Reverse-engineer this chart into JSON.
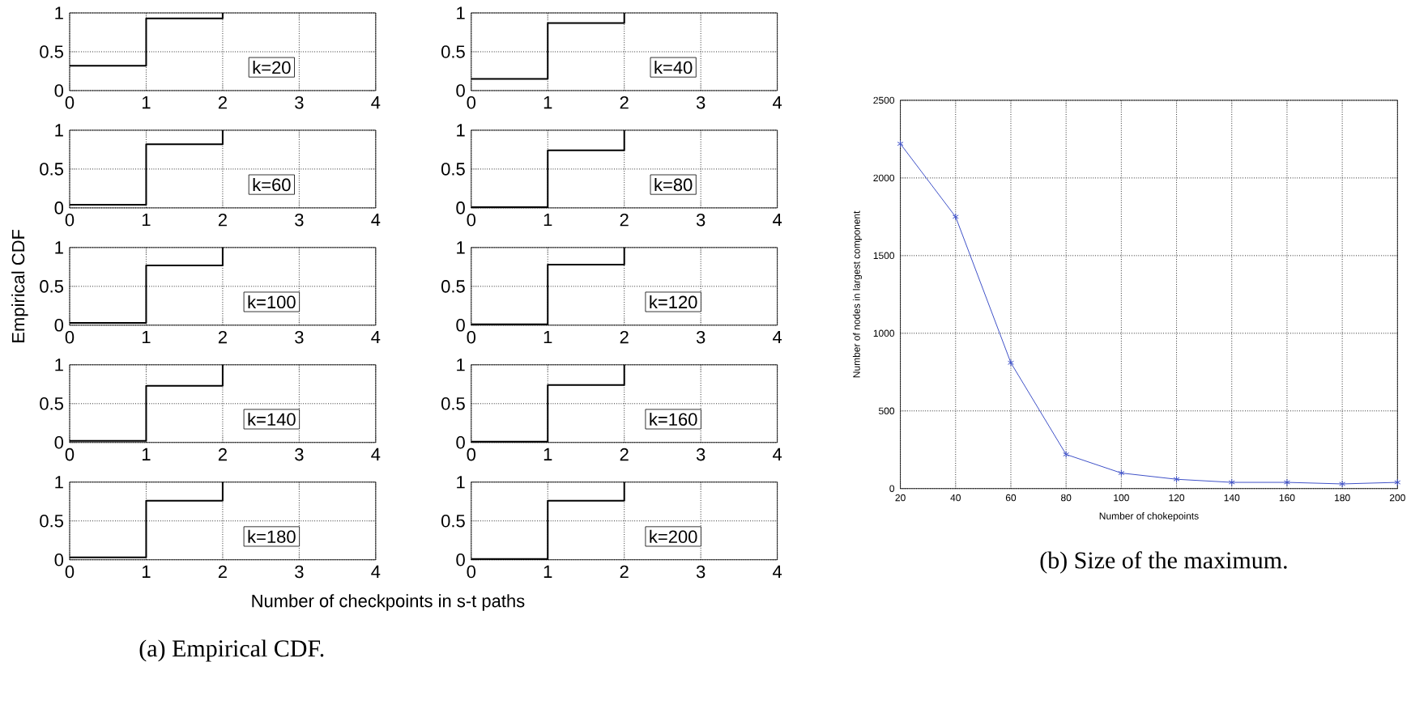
{
  "chart_data": [
    {
      "type": "step",
      "x": [
        0,
        1,
        2
      ],
      "values": [
        0.32,
        0.93,
        1
      ],
      "color": "#000000",
      "xlim": [
        0,
        4
      ],
      "ylim": [
        0,
        1
      ],
      "xticks": [
        0,
        1,
        2,
        3,
        4
      ],
      "yticks": [
        0,
        0.5,
        1
      ],
      "grid": true,
      "annotations": [
        "k=20"
      ]
    },
    {
      "type": "step",
      "x": [
        0,
        1,
        2
      ],
      "values": [
        0.15,
        0.87,
        1
      ],
      "color": "#000000",
      "xlim": [
        0,
        4
      ],
      "ylim": [
        0,
        1
      ],
      "xticks": [
        0,
        1,
        2,
        3,
        4
      ],
      "yticks": [
        0,
        0.5,
        1
      ],
      "grid": true,
      "annotations": [
        "k=40"
      ]
    },
    {
      "type": "step",
      "x": [
        0,
        1,
        2
      ],
      "values": [
        0.04,
        0.82,
        1
      ],
      "color": "#000000",
      "xlim": [
        0,
        4
      ],
      "ylim": [
        0,
        1
      ],
      "xticks": [
        0,
        1,
        2,
        3,
        4
      ],
      "yticks": [
        0,
        0.5,
        1
      ],
      "grid": true,
      "annotations": [
        "k=60"
      ]
    },
    {
      "type": "step",
      "x": [
        0,
        1,
        2
      ],
      "values": [
        0.01,
        0.74,
        1
      ],
      "color": "#000000",
      "xlim": [
        0,
        4
      ],
      "ylim": [
        0,
        1
      ],
      "xticks": [
        0,
        1,
        2,
        3,
        4
      ],
      "yticks": [
        0,
        0.5,
        1
      ],
      "grid": true,
      "annotations": [
        "k=80"
      ]
    },
    {
      "type": "step",
      "x": [
        0,
        1,
        2
      ],
      "values": [
        0.03,
        0.77,
        1
      ],
      "color": "#000000",
      "xlim": [
        0,
        4
      ],
      "ylim": [
        0,
        1
      ],
      "xticks": [
        0,
        1,
        2,
        3,
        4
      ],
      "yticks": [
        0,
        0.5,
        1
      ],
      "grid": true,
      "ylabel": "Empirical CDF",
      "annotations": [
        "k=100"
      ]
    },
    {
      "type": "step",
      "x": [
        0,
        1,
        2
      ],
      "values": [
        0.01,
        0.78,
        1
      ],
      "color": "#000000",
      "xlim": [
        0,
        4
      ],
      "ylim": [
        0,
        1
      ],
      "xticks": [
        0,
        1,
        2,
        3,
        4
      ],
      "yticks": [
        0,
        0.5,
        1
      ],
      "grid": true,
      "annotations": [
        "k=120"
      ]
    },
    {
      "type": "step",
      "x": [
        0,
        1,
        2
      ],
      "values": [
        0.02,
        0.73,
        1
      ],
      "color": "#000000",
      "xlim": [
        0,
        4
      ],
      "ylim": [
        0,
        1
      ],
      "xticks": [
        0,
        1,
        2,
        3,
        4
      ],
      "yticks": [
        0,
        0.5,
        1
      ],
      "grid": true,
      "annotations": [
        "k=140"
      ]
    },
    {
      "type": "step",
      "x": [
        0,
        1,
        2
      ],
      "values": [
        0.01,
        0.74,
        1
      ],
      "color": "#000000",
      "xlim": [
        0,
        4
      ],
      "ylim": [
        0,
        1
      ],
      "xticks": [
        0,
        1,
        2,
        3,
        4
      ],
      "yticks": [
        0,
        0.5,
        1
      ],
      "grid": true,
      "annotations": [
        "k=160"
      ]
    },
    {
      "type": "step",
      "x": [
        0,
        1,
        2
      ],
      "values": [
        0.03,
        0.76,
        1
      ],
      "color": "#000000",
      "xlim": [
        0,
        4
      ],
      "ylim": [
        0,
        1
      ],
      "xticks": [
        0,
        1,
        2,
        3,
        4
      ],
      "yticks": [
        0,
        0.5,
        1
      ],
      "grid": true,
      "xlabel": "Number of checkpoints in s-t paths",
      "annotations": [
        "k=180",
        "(a) Empirical CDF."
      ]
    },
    {
      "type": "step",
      "x": [
        0,
        1,
        2
      ],
      "values": [
        0.01,
        0.76,
        1
      ],
      "color": "#000000",
      "xlim": [
        0,
        4
      ],
      "ylim": [
        0,
        1
      ],
      "xticks": [
        0,
        1,
        2,
        3,
        4
      ],
      "yticks": [
        0,
        0.5,
        1
      ],
      "grid": true,
      "annotations": [
        "k=200"
      ]
    },
    {
      "type": "line",
      "x": [
        20,
        40,
        60,
        80,
        100,
        120,
        140,
        160,
        180,
        200
      ],
      "values": [
        2220,
        1750,
        810,
        220,
        100,
        60,
        40,
        40,
        30,
        40
      ],
      "color": "#3f51c8",
      "marker": "cross",
      "xlim": [
        20,
        200
      ],
      "ylim": [
        0,
        2500
      ],
      "xticks": [
        20,
        40,
        60,
        80,
        100,
        120,
        140,
        160,
        180,
        200
      ],
      "yticks": [
        0,
        500,
        1000,
        1500,
        2000,
        2500
      ],
      "grid": true,
      "xlabel": "Number of chokepoints",
      "ylabel": "Number of nodes in largest component",
      "annotations": [
        "(b) Size of the maximum."
      ]
    }
  ]
}
